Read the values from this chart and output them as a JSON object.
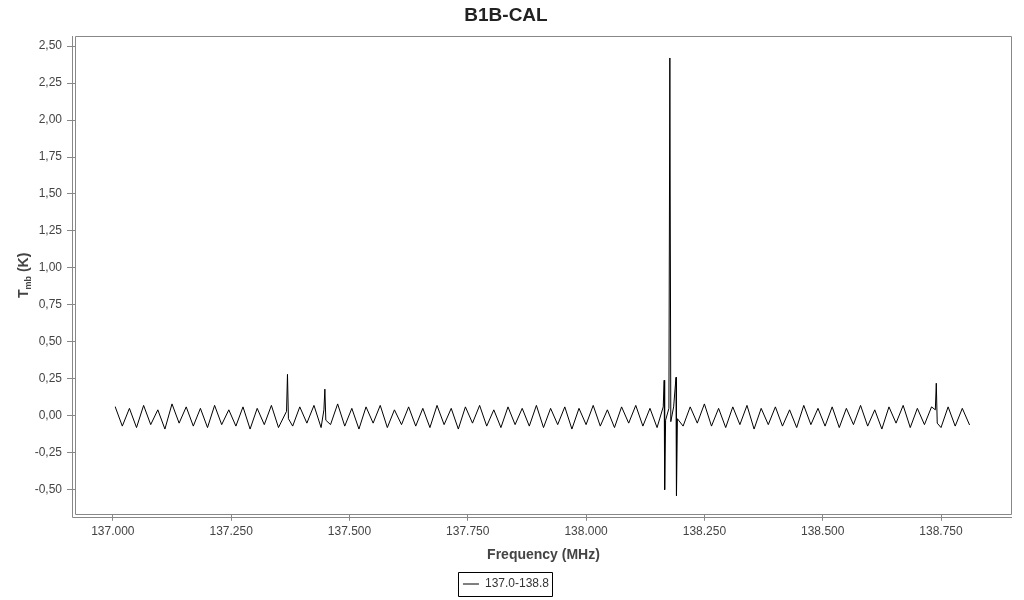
{
  "chart_data": {
    "type": "line",
    "title": "B1B-CAL",
    "xlabel": "Frequency (MHz)",
    "ylabel": "T$_{mb}$ (K)",
    "xlim": [
      136920,
      138900
    ],
    "xticks": [
      {
        "value": 137000,
        "label": "137.000"
      },
      {
        "value": 137250,
        "label": "137.250"
      },
      {
        "value": 137500,
        "label": "137.500"
      },
      {
        "value": 137750,
        "label": "137.750"
      },
      {
        "value": 138000,
        "label": "138.000"
      },
      {
        "value": 138250,
        "label": "138.250"
      },
      {
        "value": 138500,
        "label": "138.500"
      },
      {
        "value": 138750,
        "label": "138.750"
      }
    ],
    "ylim": [
      -0.67,
      2.57
    ],
    "yticks": [
      {
        "value": -0.5,
        "label": "-0,50"
      },
      {
        "value": -0.25,
        "label": "-0,25"
      },
      {
        "value": 0,
        "label": "0,00"
      },
      {
        "value": 0.25,
        "label": "0,25"
      },
      {
        "value": 0.5,
        "label": "0,50"
      },
      {
        "value": 0.75,
        "label": "0,75"
      },
      {
        "value": 1,
        "label": "1,00"
      },
      {
        "value": 1.25,
        "label": "1,25"
      },
      {
        "value": 1.5,
        "label": "1,50"
      },
      {
        "value": 1.75,
        "label": "1,75"
      },
      {
        "value": 2,
        "label": "2,00"
      },
      {
        "value": 2.25,
        "label": "2,25"
      },
      {
        "value": 2.5,
        "label": "2,50"
      }
    ],
    "legend": "bottom",
    "x": [
      137005,
      137020,
      137035,
      137050,
      137065,
      137080,
      137095,
      137110,
      137125,
      137140,
      137155,
      137170,
      137185,
      137200,
      137215,
      137230,
      137245,
      137260,
      137275,
      137290,
      137305,
      137320,
      137335,
      137350,
      137367,
      137369,
      137371,
      137380,
      137395,
      137410,
      137425,
      137440,
      137446,
      137448,
      137450,
      137460,
      137475,
      137490,
      137505,
      137520,
      137535,
      137550,
      137565,
      137580,
      137595,
      137610,
      137625,
      137640,
      137655,
      137670,
      137685,
      137700,
      137715,
      137730,
      137745,
      137760,
      137775,
      137790,
      137805,
      137820,
      137835,
      137850,
      137865,
      137880,
      137895,
      137910,
      137925,
      137940,
      137955,
      137970,
      137985,
      138000,
      138015,
      138030,
      138045,
      138060,
      138075,
      138090,
      138105,
      138120,
      138135,
      138150,
      138163,
      138165,
      138166,
      138168,
      138175,
      138177,
      138179,
      138185,
      138190,
      138191,
      138193,
      138205,
      138220,
      138235,
      138250,
      138265,
      138280,
      138295,
      138310,
      138325,
      138340,
      138355,
      138370,
      138385,
      138400,
      138415,
      138430,
      138445,
      138460,
      138475,
      138490,
      138505,
      138520,
      138535,
      138550,
      138565,
      138580,
      138595,
      138610,
      138625,
      138640,
      138655,
      138670,
      138685,
      138700,
      138715,
      138730,
      138738,
      138740,
      138742,
      138750,
      138765,
      138780,
      138795,
      138810
    ],
    "series": [
      {
        "name": "137.0-138.8",
        "color": "#000000",
        "values": [
          0.06,
          -0.07,
          0.05,
          -0.08,
          0.07,
          -0.06,
          0.04,
          -0.09,
          0.08,
          -0.05,
          0.06,
          -0.07,
          0.05,
          -0.08,
          0.07,
          -0.06,
          0.04,
          -0.07,
          0.06,
          -0.09,
          0.05,
          -0.06,
          0.07,
          -0.08,
          0.03,
          0.28,
          -0.02,
          -0.07,
          0.06,
          -0.05,
          0.07,
          -0.08,
          0.04,
          0.18,
          -0.03,
          -0.06,
          0.08,
          -0.07,
          0.05,
          -0.09,
          0.06,
          -0.05,
          0.07,
          -0.08,
          0.04,
          -0.06,
          0.06,
          -0.07,
          0.05,
          -0.08,
          0.07,
          -0.06,
          0.05,
          -0.09,
          0.06,
          -0.05,
          0.07,
          -0.07,
          0.04,
          -0.08,
          0.06,
          -0.06,
          0.05,
          -0.07,
          0.07,
          -0.08,
          0.05,
          -0.06,
          0.06,
          -0.09,
          0.05,
          -0.06,
          0.07,
          -0.07,
          0.04,
          -0.08,
          0.06,
          -0.05,
          0.07,
          -0.07,
          0.05,
          -0.08,
          0.06,
          0.24,
          -0.5,
          -0.03,
          0.05,
          2.42,
          -0.04,
          0.06,
          0.26,
          -0.54,
          -0.02,
          -0.07,
          0.06,
          -0.05,
          0.08,
          -0.07,
          0.05,
          -0.08,
          0.06,
          -0.06,
          0.07,
          -0.09,
          0.05,
          -0.06,
          0.06,
          -0.07,
          0.04,
          -0.08,
          0.07,
          -0.06,
          0.05,
          -0.07,
          0.06,
          -0.08,
          0.05,
          -0.06,
          0.07,
          -0.07,
          0.04,
          -0.09,
          0.06,
          -0.05,
          0.07,
          -0.08,
          0.05,
          -0.06,
          0.06,
          0.04,
          0.22,
          -0.05,
          -0.08,
          0.06,
          -0.07,
          0.05,
          -0.06
        ]
      }
    ]
  }
}
